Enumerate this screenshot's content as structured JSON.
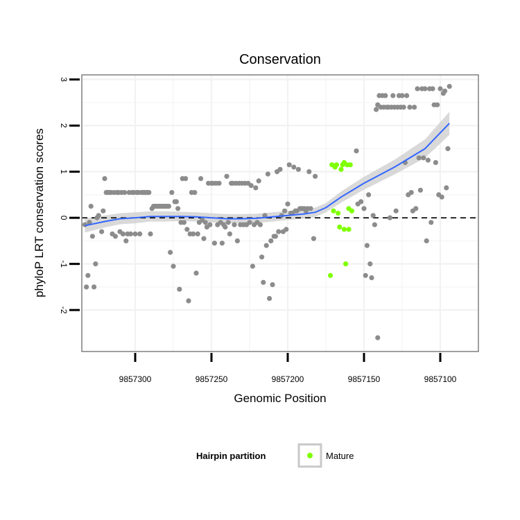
{
  "chart_data": {
    "type": "scatter",
    "title": "Conservation",
    "xlabel": "Genomic Position",
    "ylabel": "phyloP LRT conservation scores",
    "xlim": [
      9857335,
      9857075
    ],
    "x_reversed": true,
    "ylim": [
      -2.9,
      3.1
    ],
    "xticks": [
      9857300,
      9857250,
      9857200,
      9857150,
      9857100
    ],
    "yticks": [
      -2,
      -1,
      0,
      1,
      2,
      3
    ],
    "xtick_labels": [
      "9857300",
      "9857250",
      "9857200",
      "9857150",
      "9857100"
    ],
    "ytick_labels": [
      "-2",
      "-1",
      "0",
      "1",
      "2",
      "3"
    ],
    "grid": true,
    "reference_line": {
      "y": 0,
      "style": "dashed",
      "color": "#000000"
    },
    "legend": {
      "title": "Hairpin partition",
      "entries": [
        "Mature"
      ],
      "position": "bottom"
    },
    "colors": {
      "other": "#8c8c8c",
      "mature": "#7fff00",
      "smooth": "#3366ff",
      "band": "#cccccc",
      "panel_border": "#7f7f7f",
      "grid": "#f2f2f2"
    },
    "series": [
      {
        "name": "Other",
        "points": [
          [
            9857333,
            -0.15
          ],
          [
            9857332,
            -1.5
          ],
          [
            9857331,
            -1.25
          ],
          [
            9857330,
            -0.1
          ],
          [
            9857329,
            0.25
          ],
          [
            9857328,
            -0.4
          ],
          [
            9857327,
            -1.5
          ],
          [
            9857326,
            -1.0
          ],
          [
            9857325,
            0.0
          ],
          [
            9857324,
            0.05
          ],
          [
            9857322,
            -0.3
          ],
          [
            9857321,
            0.15
          ],
          [
            9857320,
            0.85
          ],
          [
            9857319,
            0.55
          ],
          [
            9857318,
            0.55
          ],
          [
            9857317,
            0.55
          ],
          [
            9857316,
            0.55
          ],
          [
            9857315,
            -0.35
          ],
          [
            9857314,
            0.55
          ],
          [
            9857313,
            -0.4
          ],
          [
            9857312,
            0.55
          ],
          [
            9857311,
            0.55
          ],
          [
            9857310,
            -0.3
          ],
          [
            9857309,
            0.55
          ],
          [
            9857308,
            -0.35
          ],
          [
            9857307,
            0.55
          ],
          [
            9857306,
            -0.5
          ],
          [
            9857305,
            -0.35
          ],
          [
            9857304,
            0.55
          ],
          [
            9857303,
            -0.35
          ],
          [
            9857302,
            0.55
          ],
          [
            9857301,
            0.55
          ],
          [
            9857300,
            -0.35
          ],
          [
            9857299,
            0.55
          ],
          [
            9857298,
            0.55
          ],
          [
            9857297,
            -0.35
          ],
          [
            9857296,
            0.55
          ],
          [
            9857295,
            0.55
          ],
          [
            9857294,
            0.55
          ],
          [
            9857293,
            0.55
          ],
          [
            9857292,
            0.55
          ],
          [
            9857291,
            0.55
          ],
          [
            9857290,
            -0.35
          ],
          [
            9857289,
            0.2
          ],
          [
            9857288,
            0.25
          ],
          [
            9857287,
            0.25
          ],
          [
            9857286,
            0.25
          ],
          [
            9857285,
            0.25
          ],
          [
            9857284,
            0.25
          ],
          [
            9857283,
            0.25
          ],
          [
            9857282,
            0.25
          ],
          [
            9857281,
            0.25
          ],
          [
            9857280,
            0.25
          ],
          [
            9857279,
            0.25
          ],
          [
            9857278,
            0.25
          ],
          [
            9857277,
            -0.75
          ],
          [
            9857276,
            0.55
          ],
          [
            9857275,
            -1.05
          ],
          [
            9857274,
            0.35
          ],
          [
            9857273,
            0.35
          ],
          [
            9857272,
            0.2
          ],
          [
            9857271,
            -1.55
          ],
          [
            9857270,
            -0.1
          ],
          [
            9857269,
            0.85
          ],
          [
            9857268,
            -0.1
          ],
          [
            9857267,
            0.85
          ],
          [
            9857266,
            -0.25
          ],
          [
            9857265,
            -1.8
          ],
          [
            9857264,
            -0.35
          ],
          [
            9857263,
            0.55
          ],
          [
            9857262,
            -0.35
          ],
          [
            9857261,
            0.55
          ],
          [
            9857260,
            -1.2
          ],
          [
            9857259,
            -0.35
          ],
          [
            9857258,
            -0.1
          ],
          [
            9857257,
            0.85
          ],
          [
            9857256,
            -0.05
          ],
          [
            9857255,
            -0.45
          ],
          [
            9857254,
            -0.1
          ],
          [
            9857253,
            -0.2
          ],
          [
            9857252,
            0.75
          ],
          [
            9857251,
            -0.15
          ],
          [
            9857250,
            0.75
          ],
          [
            9857249,
            0.75
          ],
          [
            9857248,
            -0.55
          ],
          [
            9857247,
            0.75
          ],
          [
            9857246,
            -0.15
          ],
          [
            9857245,
            0.75
          ],
          [
            9857244,
            -0.1
          ],
          [
            9857243,
            -0.55
          ],
          [
            9857242,
            -0.15
          ],
          [
            9857241,
            -0.2
          ],
          [
            9857240,
            0.9
          ],
          [
            9857239,
            -0.1
          ],
          [
            9857238,
            -0.35
          ],
          [
            9857237,
            0.75
          ],
          [
            9857236,
            0.75
          ],
          [
            9857235,
            -0.15
          ],
          [
            9857234,
            0.75
          ],
          [
            9857233,
            -0.5
          ],
          [
            9857232,
            0.75
          ],
          [
            9857231,
            -0.15
          ],
          [
            9857230,
            0.75
          ],
          [
            9857229,
            -0.15
          ],
          [
            9857228,
            0.75
          ],
          [
            9857227,
            -0.15
          ],
          [
            9857226,
            0.75
          ],
          [
            9857225,
            -0.1
          ],
          [
            9857224,
            0.7
          ],
          [
            9857223,
            -1.05
          ],
          [
            9857222,
            -0.15
          ],
          [
            9857221,
            0.65
          ],
          [
            9857220,
            -0.1
          ],
          [
            9857219,
            0.8
          ],
          [
            9857218,
            -0.15
          ],
          [
            9857217,
            -0.85
          ],
          [
            9857216,
            -1.4
          ],
          [
            9857215,
            0.05
          ],
          [
            9857214,
            -0.6
          ],
          [
            9857213,
            0.95
          ],
          [
            9857212,
            -1.75
          ],
          [
            9857211,
            -0.5
          ],
          [
            9857210,
            -1.45
          ],
          [
            9857209,
            -0.4
          ],
          [
            9857208,
            -0.4
          ],
          [
            9857207,
            1.0
          ],
          [
            9857206,
            -0.3
          ],
          [
            9857205,
            1.05
          ],
          [
            9857204,
            0.05
          ],
          [
            9857203,
            -0.3
          ],
          [
            9857202,
            0.15
          ],
          [
            9857201,
            -0.25
          ],
          [
            9857200,
            0.3
          ],
          [
            9857199,
            1.15
          ],
          [
            9857198,
            0.1
          ],
          [
            9857197,
            0.1
          ],
          [
            9857196,
            1.1
          ],
          [
            9857195,
            0.15
          ],
          [
            9857194,
            0.15
          ],
          [
            9857193,
            1.05
          ],
          [
            9857192,
            0.2
          ],
          [
            9857191,
            0.2
          ],
          [
            9857190,
            0.2
          ],
          [
            9857189,
            0.2
          ],
          [
            9857188,
            0.15
          ],
          [
            9857187,
            0.2
          ],
          [
            9857186,
            1.0
          ],
          [
            9857185,
            0.2
          ],
          [
            9857183,
            -0.45
          ],
          [
            9857182,
            0.9
          ],
          [
            9857155,
            1.45
          ],
          [
            9857154,
            0.3
          ],
          [
            9857152,
            0.35
          ],
          [
            9857150,
            0.2
          ],
          [
            9857149,
            -1.25
          ],
          [
            9857148,
            -0.6
          ],
          [
            9857147,
            0.5
          ],
          [
            9857146,
            -1.0
          ],
          [
            9857145,
            -1.3
          ],
          [
            9857144,
            0.05
          ],
          [
            9857143,
            -0.15
          ],
          [
            9857142,
            2.35
          ],
          [
            9857141,
            2.45
          ],
          [
            9857141,
            -2.6
          ],
          [
            9857140,
            2.65
          ],
          [
            9857139,
            2.4
          ],
          [
            9857138,
            2.65
          ],
          [
            9857137,
            2.4
          ],
          [
            9857136,
            2.65
          ],
          [
            9857135,
            2.4
          ],
          [
            9857134,
            2.4
          ],
          [
            9857133,
            0.0
          ],
          [
            9857132,
            2.4
          ],
          [
            9857131,
            2.65
          ],
          [
            9857130,
            2.4
          ],
          [
            9857129,
            0.15
          ],
          [
            9857128,
            2.4
          ],
          [
            9857127,
            2.65
          ],
          [
            9857126,
            2.4
          ],
          [
            9857125,
            2.65
          ],
          [
            9857124,
            2.4
          ],
          [
            9857123,
            1.2
          ],
          [
            9857122,
            2.65
          ],
          [
            9857121,
            0.5
          ],
          [
            9857120,
            2.4
          ],
          [
            9857119,
            0.55
          ],
          [
            9857118,
            0.15
          ],
          [
            9857117,
            2.4
          ],
          [
            9857116,
            0.2
          ],
          [
            9857115,
            2.8
          ],
          [
            9857114,
            1.3
          ],
          [
            9857113,
            0.6
          ],
          [
            9857112,
            2.8
          ],
          [
            9857111,
            1.3
          ],
          [
            9857110,
            2.8
          ],
          [
            9857109,
            -0.5
          ],
          [
            9857108,
            1.25
          ],
          [
            9857107,
            2.8
          ],
          [
            9857106,
            -0.1
          ],
          [
            9857105,
            2.8
          ],
          [
            9857104,
            2.45
          ],
          [
            9857103,
            1.2
          ],
          [
            9857102,
            2.45
          ],
          [
            9857101,
            0.5
          ],
          [
            9857100,
            2.8
          ],
          [
            9857099,
            0.45
          ],
          [
            9857098,
            2.7
          ],
          [
            9857097,
            2.75
          ],
          [
            9857096,
            0.65
          ],
          [
            9857095,
            1.5
          ],
          [
            9857094,
            2.85
          ]
        ]
      },
      {
        "name": "Mature",
        "points": [
          [
            9857172,
            -1.25
          ],
          [
            9857171,
            1.15
          ],
          [
            9857170,
            0.15
          ],
          [
            9857169,
            1.1
          ],
          [
            9857168,
            1.15
          ],
          [
            9857167,
            0.1
          ],
          [
            9857166,
            -0.2
          ],
          [
            9857165,
            1.05
          ],
          [
            9857164,
            1.15
          ],
          [
            9857163,
            1.2
          ],
          [
            9857162,
            -1.0
          ],
          [
            9857161,
            1.15
          ],
          [
            9857160,
            0.2
          ],
          [
            9857159,
            1.15
          ],
          [
            9857158,
            0.15
          ],
          [
            9857163,
            -0.25
          ],
          [
            9857160,
            -0.25
          ]
        ]
      }
    ],
    "smooth_line": {
      "x": [
        9857333,
        9857320,
        9857310,
        9857300,
        9857290,
        9857280,
        9857270,
        9857260,
        9857250,
        9857240,
        9857230,
        9857220,
        9857210,
        9857200,
        9857190,
        9857182,
        9857175,
        9857165,
        9857150,
        9857130,
        9857110,
        9857094
      ],
      "y": [
        -0.17,
        -0.08,
        -0.02,
        0.0,
        0.03,
        0.03,
        0.03,
        0.02,
        0.0,
        -0.02,
        -0.02,
        -0.01,
        0.02,
        0.05,
        0.08,
        0.12,
        0.22,
        0.45,
        0.75,
        1.1,
        1.5,
        2.05
      ],
      "se": [
        0.15,
        0.13,
        0.12,
        0.12,
        0.11,
        0.11,
        0.1,
        0.1,
        0.1,
        0.1,
        0.1,
        0.1,
        0.1,
        0.1,
        0.1,
        0.1,
        0.1,
        0.12,
        0.14,
        0.16,
        0.2,
        0.25
      ]
    }
  }
}
